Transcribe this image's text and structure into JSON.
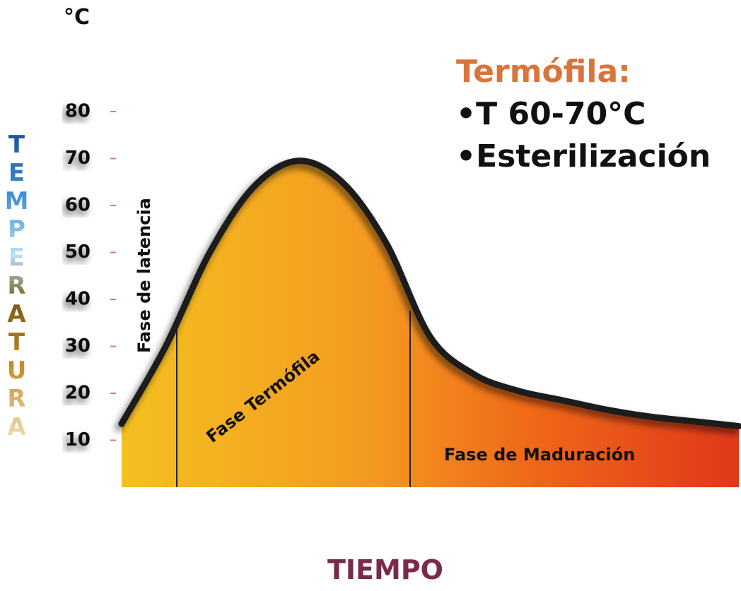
{
  "chart_data": {
    "type": "area",
    "title": "Termófila:",
    "notes": [
      "•T 60-70°C",
      "•Esterilización"
    ],
    "y_label": "TEMPERATURA",
    "y_unit": "°C",
    "x_label": "TIEMPO",
    "phases": [
      "Fase de latencia",
      "Fase Termófila",
      "Fase de Maduración"
    ],
    "categories": [
      null,
      null,
      null,
      null,
      null,
      null,
      null,
      null,
      null,
      null,
      null,
      null,
      null,
      null,
      null
    ],
    "values": [
      13.5,
      30,
      50,
      64,
      69.5,
      65,
      52,
      32,
      24,
      20.5,
      18.5,
      16.5,
      15,
      14,
      13
    ],
    "ylim": [
      0,
      100
    ],
    "yticks": [
      10,
      20,
      30,
      40,
      50,
      60,
      70,
      80
    ],
    "grid": false
  }
}
